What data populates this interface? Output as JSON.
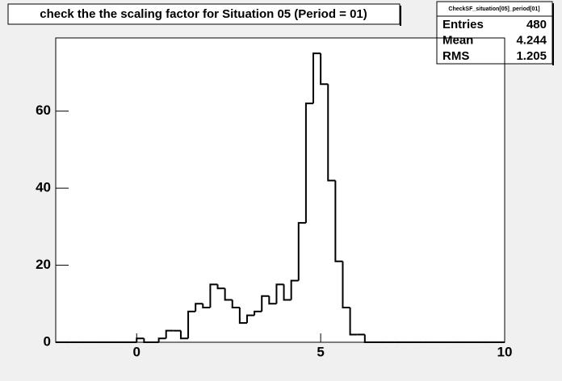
{
  "chart_data": {
    "type": "histogram",
    "title": "check the the scaling factor for Situation 05 (Period = 01)",
    "bins": [
      -2.2,
      -2,
      -1.8,
      -1.6,
      -1.4,
      -1.2,
      -1,
      -0.8,
      -0.6,
      -0.4,
      -0.2,
      0,
      0.2,
      0.4,
      0.6,
      0.8,
      1,
      1.2,
      1.4,
      1.6,
      1.8,
      2,
      2.2,
      2.4,
      2.6,
      2.8,
      3,
      3.2,
      3.4,
      3.6,
      3.8,
      4,
      4.2,
      4.4,
      4.6,
      4.8,
      5,
      5.2,
      5.4,
      5.6,
      5.8,
      6,
      6.2,
      6.4,
      6.6,
      6.8,
      7,
      7.2,
      7.4,
      7.6,
      7.8,
      8,
      8.2,
      8.4,
      8.6,
      8.8,
      9,
      9.2,
      9.4,
      9.6,
      9.8,
      10
    ],
    "counts": [
      0,
      0,
      0,
      0,
      0,
      0,
      0,
      0,
      0,
      0,
      0,
      1,
      0,
      0,
      1,
      3,
      3,
      1,
      8,
      10,
      9,
      15,
      14,
      11,
      9,
      5,
      7,
      8,
      12,
      10,
      15,
      11,
      16,
      31,
      62,
      75,
      67,
      42,
      21,
      9,
      2,
      2,
      0,
      0,
      0,
      0,
      0,
      0,
      0,
      0,
      0,
      0,
      0,
      0,
      0,
      0,
      0,
      0,
      0,
      0,
      0
    ],
    "color": "#ffffff",
    "line_color": "#000000",
    "xlim": [
      -2.2,
      10
    ],
    "ylim": [
      0,
      79
    ],
    "xticks": [
      0,
      5,
      10
    ],
    "yticks": [
      0,
      20,
      40,
      60
    ],
    "stats": {
      "name": "CheckSF_situation[05]_period[01]",
      "rows": [
        {
          "label": "Entries",
          "value": 480
        },
        {
          "label": "Mean",
          "value": 4.244
        },
        {
          "label": "RMS",
          "value": 1.205
        }
      ]
    }
  }
}
